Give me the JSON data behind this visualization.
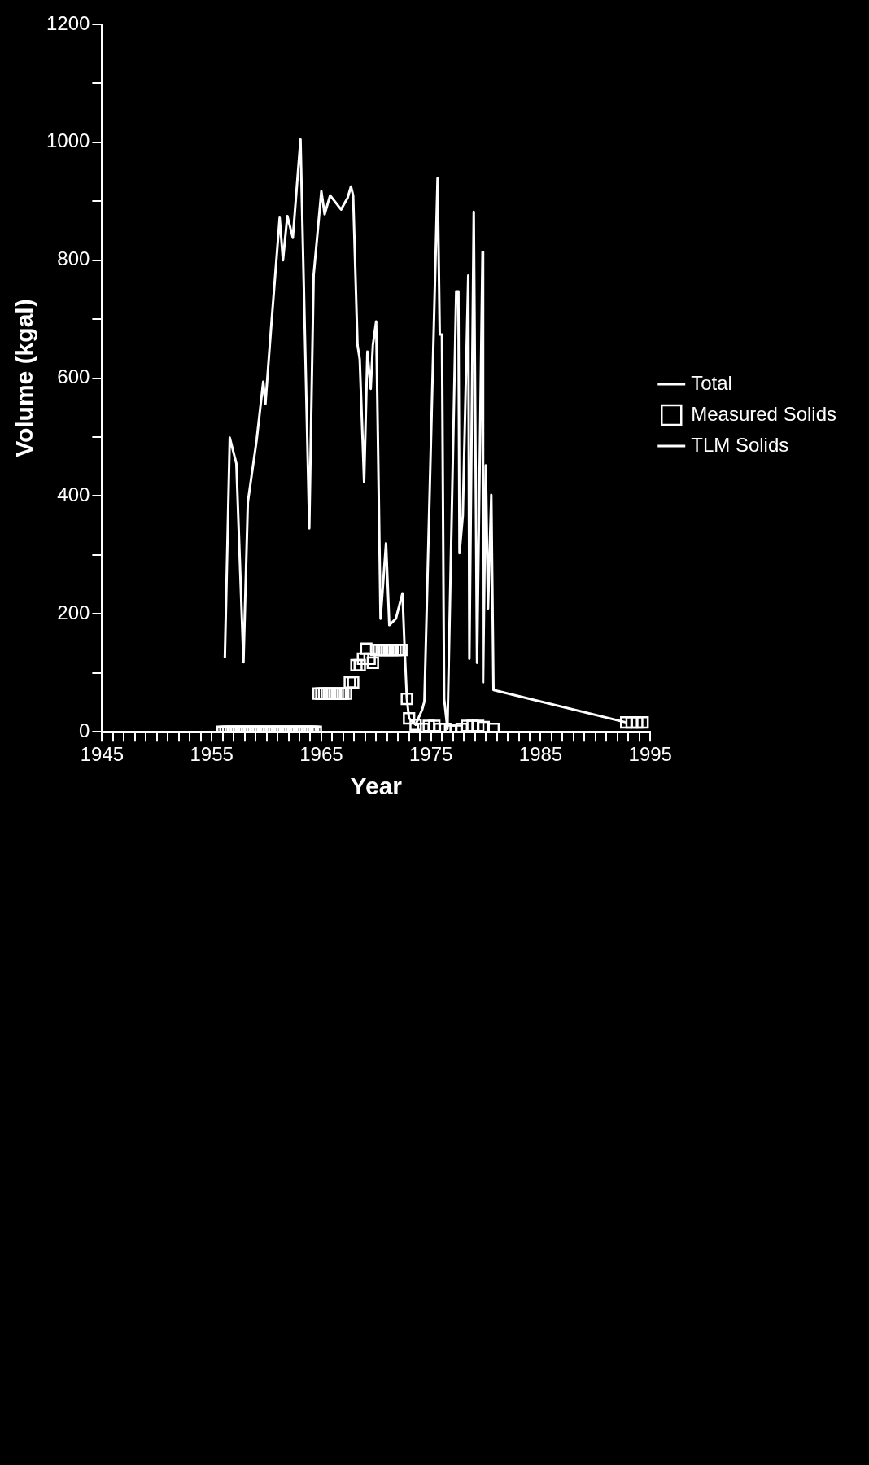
{
  "chart_data": {
    "type": "line",
    "xlabel": "Year",
    "ylabel": "Volume (kgal)",
    "xlim": [
      1945,
      1995
    ],
    "ylim": [
      0,
      1200
    ],
    "xticks": [
      1945,
      {
        "value": 1946,
        "label": null
      },
      {
        "value": 1947,
        "label": null
      },
      {
        "value": 1948,
        "label": null
      },
      {
        "value": 1949,
        "label": null
      },
      {
        "value": 1950,
        "label": null
      },
      {
        "value": 1951,
        "label": null
      },
      {
        "value": 1952,
        "label": null
      },
      {
        "value": 1953,
        "label": null
      },
      {
        "value": 1954,
        "label": null
      },
      1955,
      {
        "value": 1956,
        "label": null
      },
      {
        "value": 1957,
        "label": null
      },
      {
        "value": 1958,
        "label": null
      },
      {
        "value": 1959,
        "label": null
      },
      {
        "value": 1960,
        "label": null
      },
      {
        "value": 1961,
        "label": null
      },
      {
        "value": 1962,
        "label": null
      },
      {
        "value": 1963,
        "label": null
      },
      {
        "value": 1964,
        "label": null
      },
      1965,
      {
        "value": 1966,
        "label": null
      },
      {
        "value": 1967,
        "label": null
      },
      {
        "value": 1968,
        "label": null
      },
      {
        "value": 1969,
        "label": null
      },
      {
        "value": 1970,
        "label": null
      },
      {
        "value": 1971,
        "label": null
      },
      {
        "value": 1972,
        "label": null
      },
      {
        "value": 1973,
        "label": null
      },
      {
        "value": 1974,
        "label": null
      },
      1975,
      {
        "value": 1976,
        "label": null
      },
      {
        "value": 1977,
        "label": null
      },
      {
        "value": 1978,
        "label": null
      },
      {
        "value": 1979,
        "label": null
      },
      {
        "value": 1980,
        "label": null
      },
      {
        "value": 1981,
        "label": null
      },
      {
        "value": 1982,
        "label": null
      },
      {
        "value": 1983,
        "label": null
      },
      {
        "value": 1984,
        "label": null
      },
      1985,
      {
        "value": 1986,
        "label": null
      },
      {
        "value": 1987,
        "label": null
      },
      {
        "value": 1988,
        "label": null
      },
      {
        "value": 1989,
        "label": null
      },
      {
        "value": 1990,
        "label": null
      },
      {
        "value": 1991,
        "label": null
      },
      {
        "value": 1992,
        "label": null
      },
      {
        "value": 1993,
        "label": null
      },
      {
        "value": 1994,
        "label": null
      },
      1995
    ],
    "yticks": [
      0,
      {
        "value": 100,
        "label": null
      },
      200,
      {
        "value": 300,
        "label": null
      },
      400,
      {
        "value": 500,
        "label": null
      },
      600,
      {
        "value": 700,
        "label": null
      },
      800,
      {
        "value": 900,
        "label": null
      },
      1000,
      {
        "value": 1100,
        "label": null
      },
      1200
    ],
    "grid": false,
    "legend": "right",
    "line_style": "solid",
    "series": [
      {
        "name": "Total",
        "type": "line",
        "color": "#ffffff",
        "marker": "none",
        "x": [
          1956.2,
          1956.65,
          1957.25,
          1957.9,
          1958.3,
          1959.1,
          1959.7,
          1959.9,
          1960.4,
          1961.2,
          1961.5,
          1961.9,
          1962.4,
          1963.1,
          1963.9,
          1964.3,
          1965.0,
          1965.3,
          1965.8,
          1966.8,
          1967.4,
          1967.7,
          1967.9,
          1968.3,
          1968.5,
          1968.9,
          1969.2,
          1969.5,
          1969.7,
          1970.0,
          1970.4,
          1970.9,
          1971.2,
          1971.8,
          1972.4,
          1972.6,
          1972.8,
          1973.0,
          1973.6,
          1974.2,
          1974.4,
          1975.6,
          1975.8,
          1976.0,
          1976.2,
          1976.5,
          1977.3,
          1977.5,
          1977.6,
          1977.9,
          1978.4,
          1978.5,
          1978.9,
          1979.2,
          1979.7,
          1979.75,
          1980.0,
          1980.2,
          1980.5,
          1980.7,
          1992.8
        ],
        "values": [
          125,
          499,
          455,
          118,
          390,
          495,
          594,
          556,
          681,
          872,
          800,
          875,
          838,
          1005,
          345,
          775,
          917,
          878,
          910,
          886,
          906,
          925,
          910,
          656,
          632,
          424,
          645,
          582,
          656,
          696,
          192,
          320,
          181,
          192,
          235,
          139,
          56,
          23,
          12,
          38,
          52,
          939,
          674,
          674,
          56,
          5,
          747,
          747,
          303,
          367,
          774,
          124,
          882,
          117,
          814,
          84,
          452,
          209,
          402,
          71,
          16
        ]
      },
      {
        "name": "Measured Solids",
        "type": "scatter",
        "color": "#ffffff",
        "marker": "square",
        "x": [
          1956.0,
          1956.25,
          1956.5,
          1956.75,
          1957.0,
          1957.25,
          1957.5,
          1957.75,
          1958.0,
          1958.25,
          1958.5,
          1958.75,
          1959.0,
          1959.25,
          1959.5,
          1959.75,
          1960.0,
          1960.25,
          1960.5,
          1960.75,
          1961.0,
          1961.25,
          1961.5,
          1961.75,
          1962.0,
          1962.25,
          1962.5,
          1962.75,
          1963.0,
          1963.25,
          1963.5,
          1963.75,
          1964.0,
          1964.25,
          1964.5,
          1964.75,
          1965.0,
          1965.25,
          1965.5,
          1965.75,
          1966.0,
          1966.25,
          1966.5,
          1966.75,
          1967.0,
          1967.25,
          1967.6,
          1967.9,
          1968.2,
          1968.5,
          1968.8,
          1969.1,
          1969.4,
          1969.7,
          1970.0,
          1970.25,
          1970.5,
          1970.75,
          1971.0,
          1971.25,
          1971.5,
          1971.75,
          1972.0,
          1972.3,
          1972.8,
          1973.0,
          1973.6,
          1974.3,
          1974.8,
          1975.3,
          1975.8,
          1976.3,
          1976.8,
          1977.3,
          1977.8,
          1978.3,
          1978.8,
          1979.3,
          1979.8,
          1980.7,
          1992.8,
          1993.3,
          1993.8,
          1994.3
        ],
        "values": [
          0,
          0,
          0,
          0,
          0,
          0,
          0,
          0,
          0,
          0,
          0,
          0,
          0,
          0,
          0,
          0,
          0,
          0,
          0,
          0,
          0,
          0,
          0,
          0,
          0,
          0,
          0,
          0,
          0,
          0,
          0,
          0,
          0,
          0,
          0,
          65,
          65,
          65,
          65,
          65,
          65,
          65,
          65,
          65,
          65,
          65,
          84,
          84,
          113,
          113,
          124,
          141,
          124,
          117,
          139,
          139,
          139,
          139,
          139,
          139,
          139,
          139,
          139,
          139,
          56,
          23,
          12,
          5,
          10,
          10,
          5,
          5,
          2,
          2,
          5,
          10,
          10,
          10,
          8,
          5,
          16,
          16,
          16,
          16
        ]
      },
      {
        "name": "TLM Solids",
        "type": "line",
        "color": "#ffffff",
        "marker": "none"
      }
    ]
  }
}
